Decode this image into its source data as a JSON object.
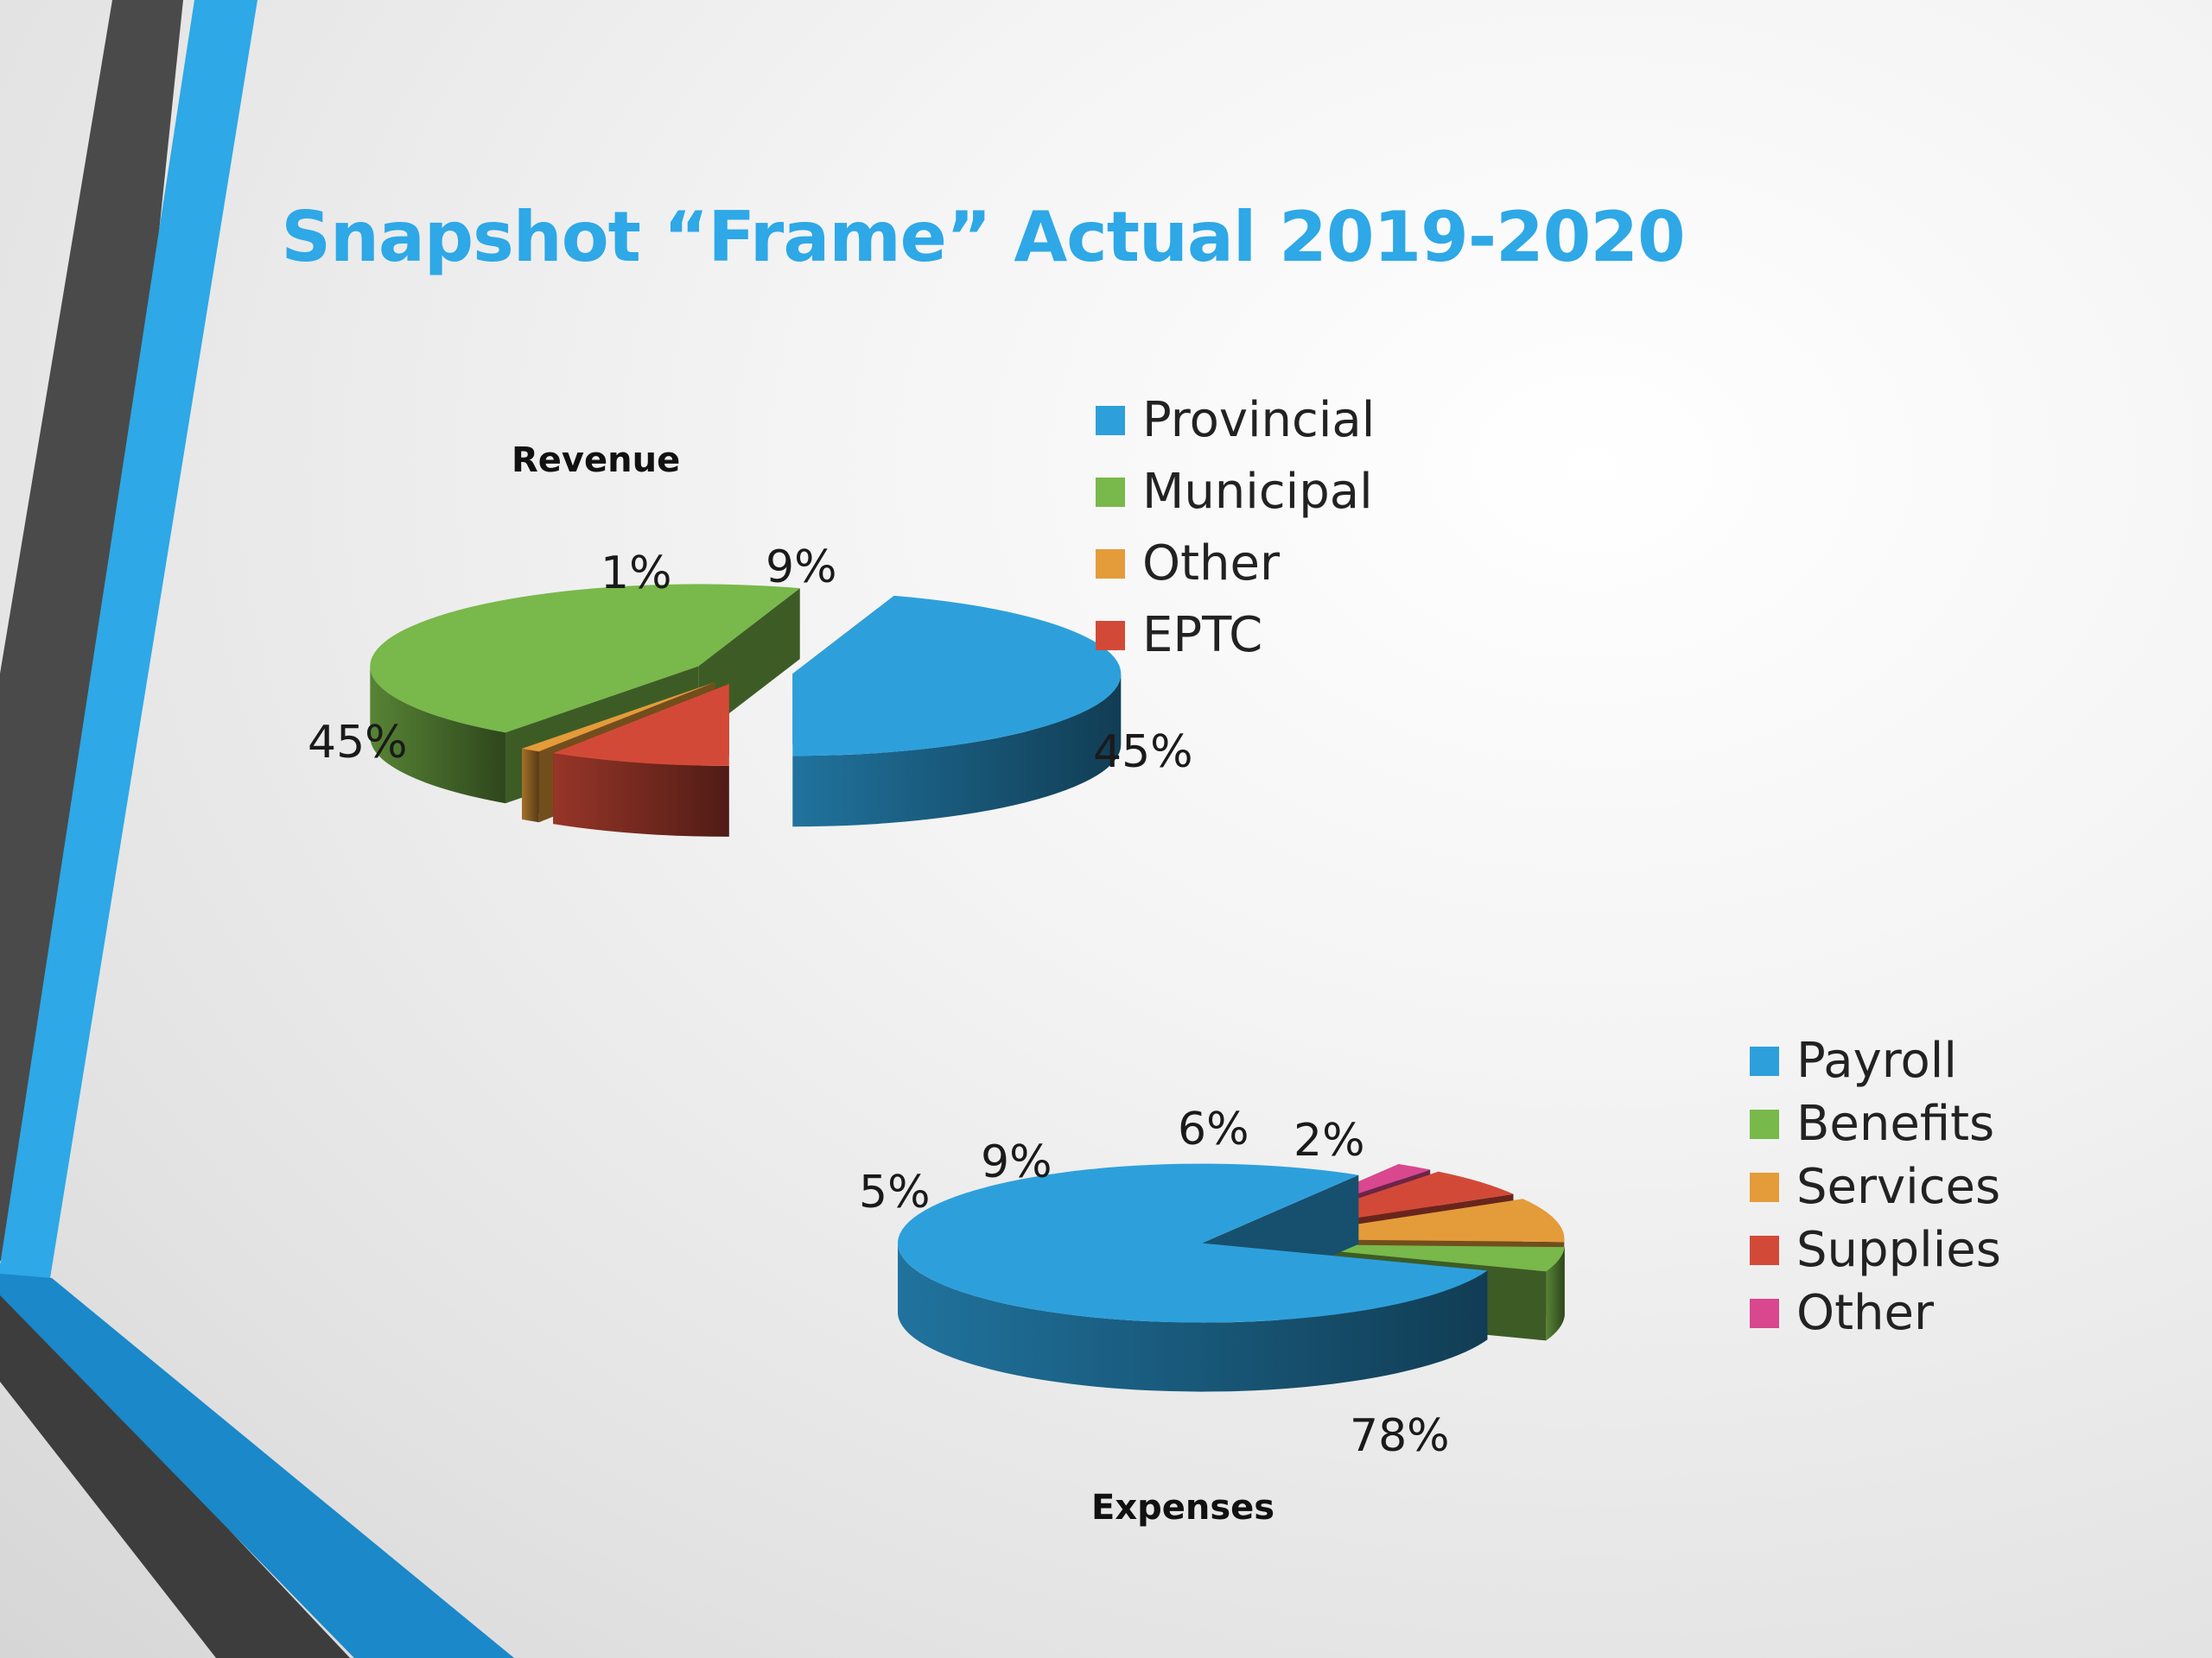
{
  "slide": {
    "title": "Snapshot “Frame” Actual 2019-2020"
  },
  "colors": {
    "accent_blue": "#2ea8e6",
    "dark_stripe": "#4a4a4a"
  },
  "chart_data": [
    {
      "type": "pie",
      "title": "Revenue",
      "legend_position": "top-right",
      "slices": [
        {
          "name": "Provincial",
          "value": 45,
          "label": "45%",
          "color": "#2da0dc"
        },
        {
          "name": "Municipal",
          "value": 45,
          "label": "45%",
          "color": "#79b84a"
        },
        {
          "name": "Other",
          "value": 1,
          "label": "1%",
          "color": "#e49b3a"
        },
        {
          "name": "EPTC",
          "value": 9,
          "label": "9%",
          "color": "#d24a37"
        }
      ]
    },
    {
      "type": "pie",
      "title": "Expenses",
      "legend_position": "right",
      "slices": [
        {
          "name": "Payroll",
          "value": 78,
          "label": "78%",
          "color": "#2da0dc"
        },
        {
          "name": "Benefits",
          "value": 5,
          "label": "5%",
          "color": "#79b84a"
        },
        {
          "name": "Services",
          "value": 9,
          "label": "9%",
          "color": "#e49b3a"
        },
        {
          "name": "Supplies",
          "value": 6,
          "label": "6%",
          "color": "#d24a37"
        },
        {
          "name": "Other",
          "value": 2,
          "label": "2%",
          "color": "#d9478f"
        }
      ]
    }
  ]
}
